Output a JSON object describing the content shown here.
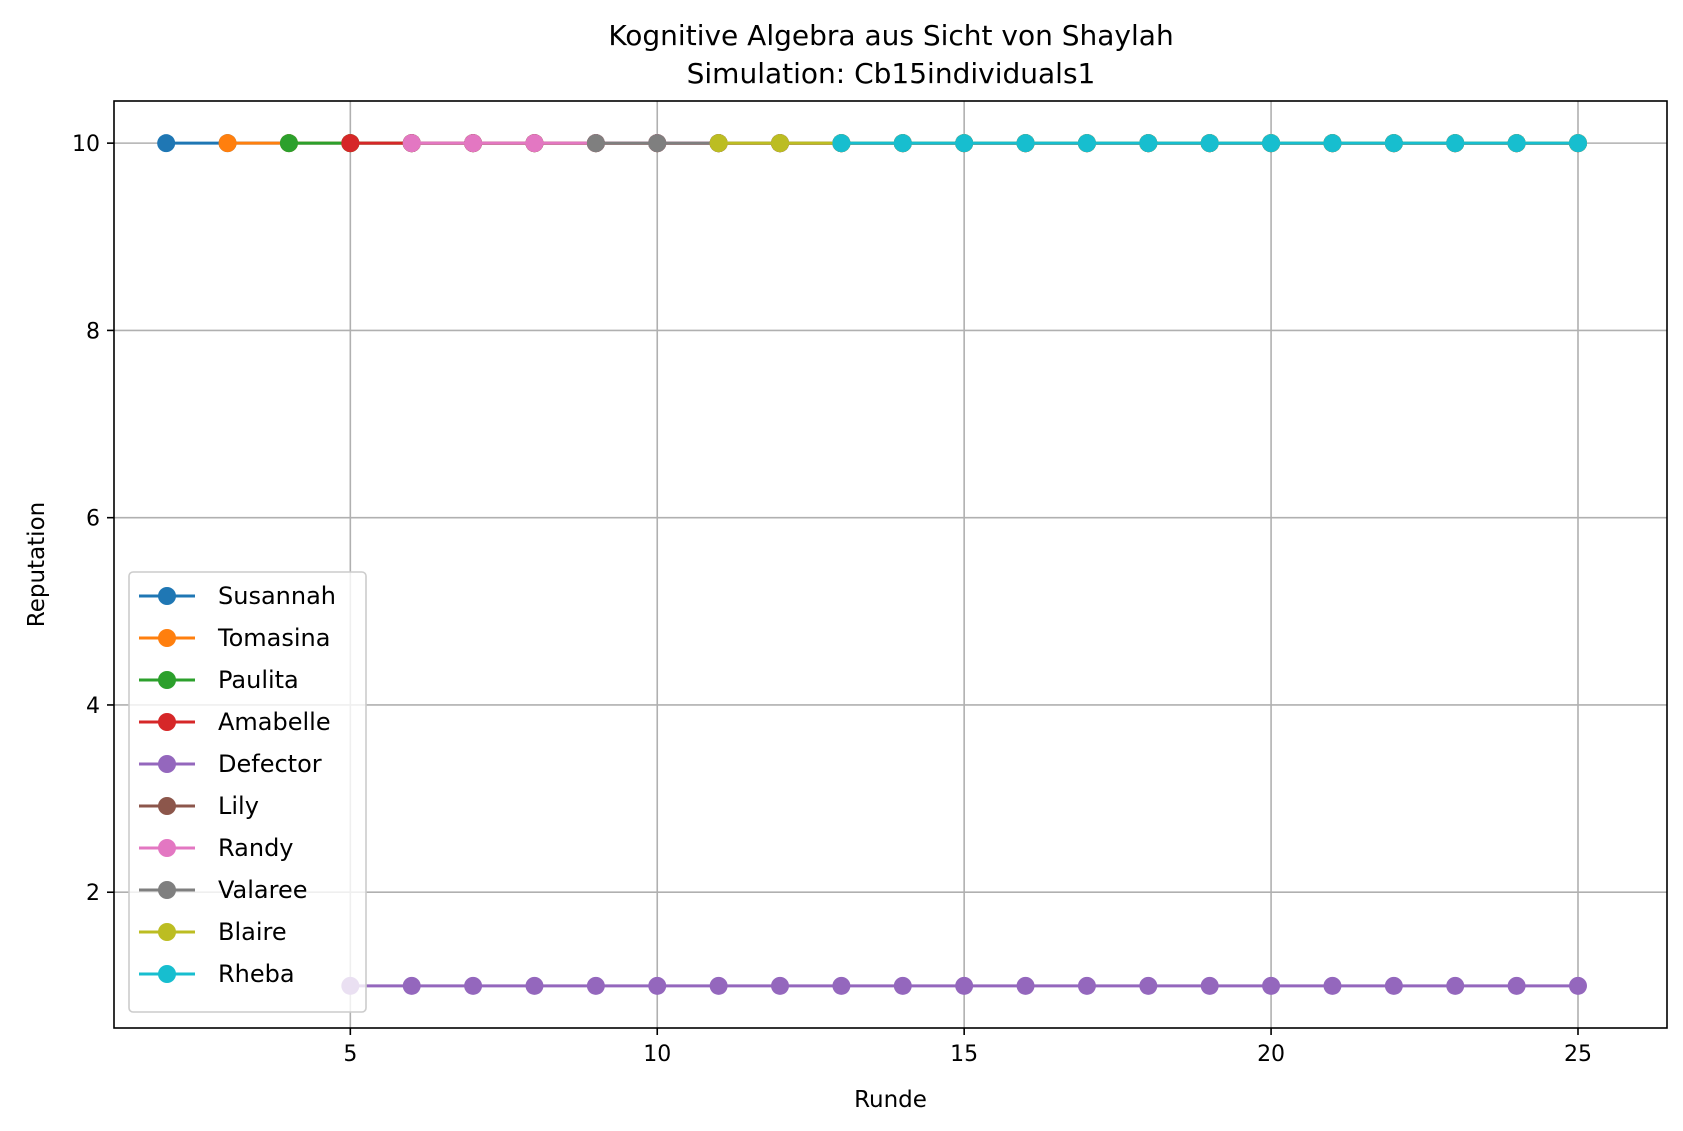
{
  "chart_data": {
    "type": "line",
    "title": "Kognitive Algebra aus Sicht von Shaylah",
    "subtitle": "Simulation: Cb15individuals1",
    "xlabel": "Runde",
    "ylabel": "Reputation",
    "xlim": [
      1.15,
      26.45
    ],
    "ylim": [
      0.55,
      10.45
    ],
    "xticks": [
      5,
      10,
      15,
      20,
      25
    ],
    "yticks": [
      2,
      4,
      6,
      8,
      10
    ],
    "grid": true,
    "legend": "lower-left",
    "series": [
      {
        "name": "Susannah",
        "color": "#1f77b4",
        "x": [
          2,
          3,
          4,
          5,
          6,
          7,
          8,
          9,
          10,
          11,
          12,
          13,
          14,
          15,
          16,
          17,
          18,
          19,
          20,
          21,
          22,
          23,
          24,
          25
        ],
        "y": [
          10,
          10,
          10,
          10,
          10,
          10,
          10,
          10,
          10,
          10,
          10,
          10,
          10,
          10,
          10,
          10,
          10,
          10,
          10,
          10,
          10,
          10,
          10,
          10
        ]
      },
      {
        "name": "Tomasina",
        "color": "#ff7f0e",
        "x": [
          3,
          4,
          5,
          6,
          7,
          8,
          9,
          10,
          11,
          12,
          13,
          14,
          15,
          16,
          17,
          18,
          19,
          20,
          21,
          22,
          23,
          24,
          25
        ],
        "y": [
          10,
          10,
          10,
          10,
          10,
          10,
          10,
          10,
          10,
          10,
          10,
          10,
          10,
          10,
          10,
          10,
          10,
          10,
          10,
          10,
          10,
          10,
          10
        ]
      },
      {
        "name": "Paulita",
        "color": "#2ca02c",
        "x": [
          4,
          5,
          6,
          7,
          8,
          9,
          10,
          11,
          12,
          13,
          14,
          15,
          16,
          17,
          18,
          19,
          20,
          21,
          22,
          23,
          24,
          25
        ],
        "y": [
          10,
          10,
          10,
          10,
          10,
          10,
          10,
          10,
          10,
          10,
          10,
          10,
          10,
          10,
          10,
          10,
          10,
          10,
          10,
          10,
          10,
          10
        ]
      },
      {
        "name": "Amabelle",
        "color": "#d62728",
        "x": [
          5,
          6,
          7,
          8,
          9,
          10,
          11,
          12,
          13,
          14,
          15,
          16,
          17,
          18,
          19,
          20,
          21,
          22,
          23,
          24,
          25
        ],
        "y": [
          10,
          10,
          10,
          10,
          10,
          10,
          10,
          10,
          10,
          10,
          10,
          10,
          10,
          10,
          10,
          10,
          10,
          10,
          10,
          10,
          10
        ]
      },
      {
        "name": "Defector",
        "color": "#9467bd",
        "x": [
          5,
          6,
          7,
          8,
          9,
          10,
          11,
          12,
          13,
          14,
          15,
          16,
          17,
          18,
          19,
          20,
          21,
          22,
          23,
          24,
          25
        ],
        "y": [
          1,
          1,
          1,
          1,
          1,
          1,
          1,
          1,
          1,
          1,
          1,
          1,
          1,
          1,
          1,
          1,
          1,
          1,
          1,
          1,
          1
        ]
      },
      {
        "name": "Lily",
        "color": "#8c564b",
        "x": [
          6,
          7,
          8,
          9,
          10,
          11,
          12,
          13,
          14,
          15,
          16,
          17,
          18,
          19,
          20,
          21,
          22,
          23,
          24,
          25
        ],
        "y": [
          10,
          10,
          10,
          10,
          10,
          10,
          10,
          10,
          10,
          10,
          10,
          10,
          10,
          10,
          10,
          10,
          10,
          10,
          10,
          10
        ]
      },
      {
        "name": "Randy",
        "color": "#e377c2",
        "x": [
          6,
          7,
          8,
          9,
          10,
          11,
          12,
          13,
          14,
          15,
          16,
          17,
          18,
          19,
          20,
          21,
          22,
          23,
          24,
          25
        ],
        "y": [
          10,
          10,
          10,
          10,
          10,
          10,
          10,
          10,
          10,
          10,
          10,
          10,
          10,
          10,
          10,
          10,
          10,
          10,
          10,
          10
        ]
      },
      {
        "name": "Valaree",
        "color": "#7f7f7f",
        "x": [
          9,
          10,
          11,
          12,
          13,
          14,
          15,
          16,
          17,
          18,
          19,
          20,
          21,
          22,
          23,
          24,
          25
        ],
        "y": [
          10,
          10,
          10,
          10,
          10,
          10,
          10,
          10,
          10,
          10,
          10,
          10,
          10,
          10,
          10,
          10,
          10
        ]
      },
      {
        "name": "Blaire",
        "color": "#bcbd22",
        "x": [
          11,
          12,
          13,
          14,
          15,
          16,
          17,
          18,
          19,
          20,
          21,
          22,
          23,
          24,
          25
        ],
        "y": [
          10,
          10,
          10,
          10,
          10,
          10,
          10,
          10,
          10,
          10,
          10,
          10,
          10,
          10,
          10
        ]
      },
      {
        "name": "Rheba",
        "color": "#17becf",
        "x": [
          13,
          14,
          15,
          16,
          17,
          18,
          19,
          20,
          21,
          22,
          23,
          24,
          25
        ],
        "y": [
          10,
          10,
          10,
          10,
          10,
          10,
          10,
          10,
          10,
          10,
          10,
          10,
          10
        ]
      }
    ]
  }
}
